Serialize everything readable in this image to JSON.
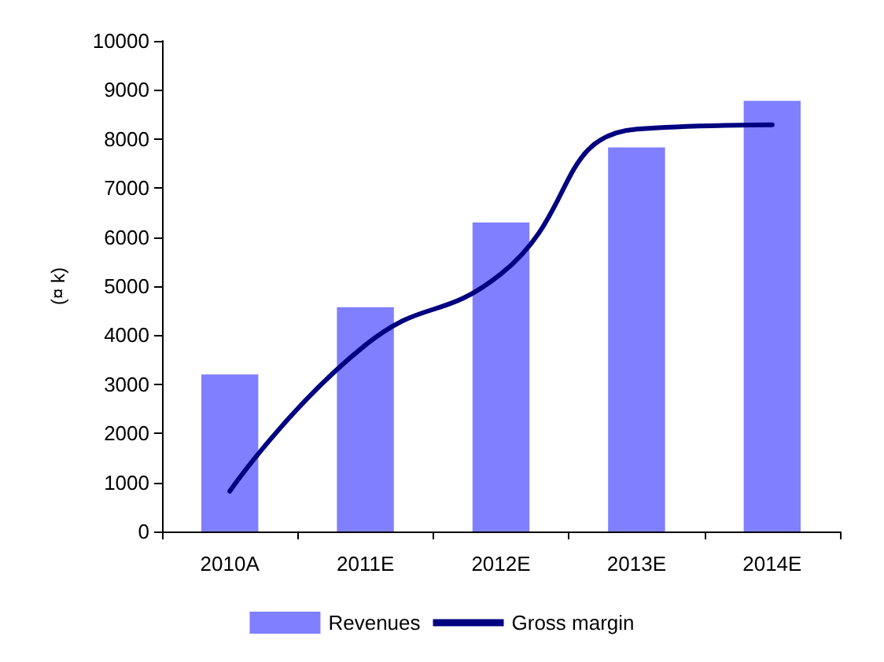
{
  "chart_data": {
    "type": "bar",
    "ylabel": "(¤ k)",
    "categories": [
      "2010A",
      "2011E",
      "2012E",
      "2013E",
      "2014E"
    ],
    "series": [
      {
        "name": "Revenues",
        "color": "#7f7fff",
        "values": [
          3200,
          4570,
          6300,
          7830,
          8780
        ]
      },
      {
        "name": "Gross margin",
        "type": "line",
        "color": "#000080",
        "values": [
          820,
          3800,
          5250,
          8200,
          8290
        ]
      }
    ],
    "ylim": [
      0,
      10000
    ],
    "yticks": [
      0,
      1000,
      2000,
      3000,
      4000,
      5000,
      6000,
      7000,
      8000,
      9000,
      10000
    ],
    "grid": false,
    "legend": "bottom",
    "marker": "none"
  }
}
